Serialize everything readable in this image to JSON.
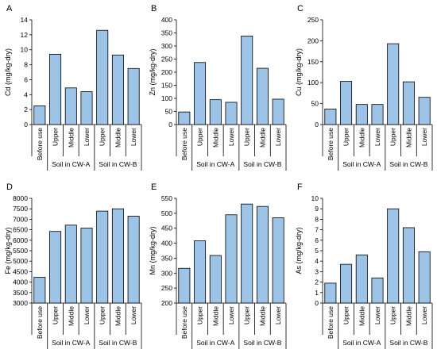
{
  "chart_data": [
    {
      "type": "bar",
      "panel_label": "A",
      "ylabel": "Cd (mg/kg-dry)",
      "ylim": [
        0,
        14
      ],
      "yticks": [
        0,
        2,
        4,
        6,
        8,
        10,
        12,
        14
      ],
      "categories": [
        "Before use",
        "Upper",
        "Middle",
        "Lower",
        "Upper",
        "Middle",
        "Lower"
      ],
      "values": [
        2.5,
        9.4,
        4.9,
        4.4,
        12.6,
        9.3,
        7.5
      ],
      "groups": [
        {
          "label": "Soil in CW-A",
          "start": 1,
          "end": 3
        },
        {
          "label": "Soil in CW-B",
          "start": 4,
          "end": 6
        }
      ],
      "bar_color": "#9dc3e6"
    },
    {
      "type": "bar",
      "panel_label": "B",
      "ylabel": "Zn (mg/kg-dry)",
      "ylim": [
        0,
        400
      ],
      "yticks": [
        0,
        50,
        100,
        150,
        200,
        250,
        300,
        350,
        400
      ],
      "categories": [
        "Before use",
        "Upper",
        "Middle",
        "Lower",
        "Upper",
        "Middle",
        "Lower"
      ],
      "values": [
        48,
        237,
        95,
        85,
        338,
        215,
        97
      ],
      "groups": [
        {
          "label": "Soil in CW-A",
          "start": 1,
          "end": 3
        },
        {
          "label": "Soil in CW-B",
          "start": 4,
          "end": 6
        }
      ],
      "bar_color": "#9dc3e6"
    },
    {
      "type": "bar",
      "panel_label": "C",
      "ylabel": "Cu (mg/kg-dry)",
      "ylim": [
        0,
        250
      ],
      "yticks": [
        0,
        50,
        100,
        150,
        200,
        250
      ],
      "categories": [
        "Before use",
        "Upper",
        "Middle",
        "Lower",
        "Upper",
        "Middle",
        "Lower"
      ],
      "values": [
        37,
        103,
        48,
        48,
        193,
        102,
        65
      ],
      "groups": [
        {
          "label": "Soil in CW-A",
          "start": 1,
          "end": 3
        },
        {
          "label": "Soil in CW-B",
          "start": 4,
          "end": 6
        }
      ],
      "bar_color": "#9dc3e6"
    },
    {
      "type": "bar",
      "panel_label": "D",
      "ylabel": "Fe (mg/kg-dry)",
      "ylim": [
        3000,
        8000
      ],
      "yticks": [
        3000,
        3500,
        4000,
        4500,
        5000,
        5500,
        6000,
        6500,
        7000,
        7500,
        8000
      ],
      "categories": [
        "Before use",
        "Upper",
        "Middle",
        "Lower",
        "Upper",
        "Middle",
        "Lower"
      ],
      "values": [
        4230,
        6420,
        6720,
        6580,
        7390,
        7500,
        7150
      ],
      "groups": [
        {
          "label": "Soil in CW-A",
          "start": 1,
          "end": 3
        },
        {
          "label": "Soil in CW-B",
          "start": 4,
          "end": 6
        }
      ],
      "bar_color": "#9dc3e6"
    },
    {
      "type": "bar",
      "panel_label": "E",
      "ylabel": "Mn (mg/kg-dry)",
      "ylim": [
        200,
        550
      ],
      "yticks": [
        200,
        250,
        300,
        350,
        400,
        450,
        500,
        550
      ],
      "categories": [
        "Before use",
        "Upper",
        "Middle",
        "Lower",
        "Upper",
        "Middle",
        "Lower"
      ],
      "values": [
        316,
        408,
        359,
        495,
        531,
        523,
        485
      ],
      "groups": [
        {
          "label": "Soil in CW-A",
          "start": 1,
          "end": 3
        },
        {
          "label": "Soil in CW-B",
          "start": 4,
          "end": 6
        }
      ],
      "bar_color": "#9dc3e6"
    },
    {
      "type": "bar",
      "panel_label": "F",
      "ylabel": "As (mg/kg-dry)",
      "ylim": [
        0,
        10
      ],
      "yticks": [
        0,
        1,
        2,
        3,
        4,
        5,
        6,
        7,
        8,
        9,
        10
      ],
      "categories": [
        "Before use",
        "Upper",
        "Middle",
        "Lower",
        "Upper",
        "Middle",
        "Lower"
      ],
      "values": [
        1.9,
        3.7,
        4.6,
        2.4,
        9.0,
        7.2,
        4.9
      ],
      "groups": [
        {
          "label": "Soil in CW-A",
          "start": 1,
          "end": 3
        },
        {
          "label": "Soil in CW-B",
          "start": 4,
          "end": 6
        }
      ],
      "bar_color": "#9dc3e6"
    }
  ]
}
